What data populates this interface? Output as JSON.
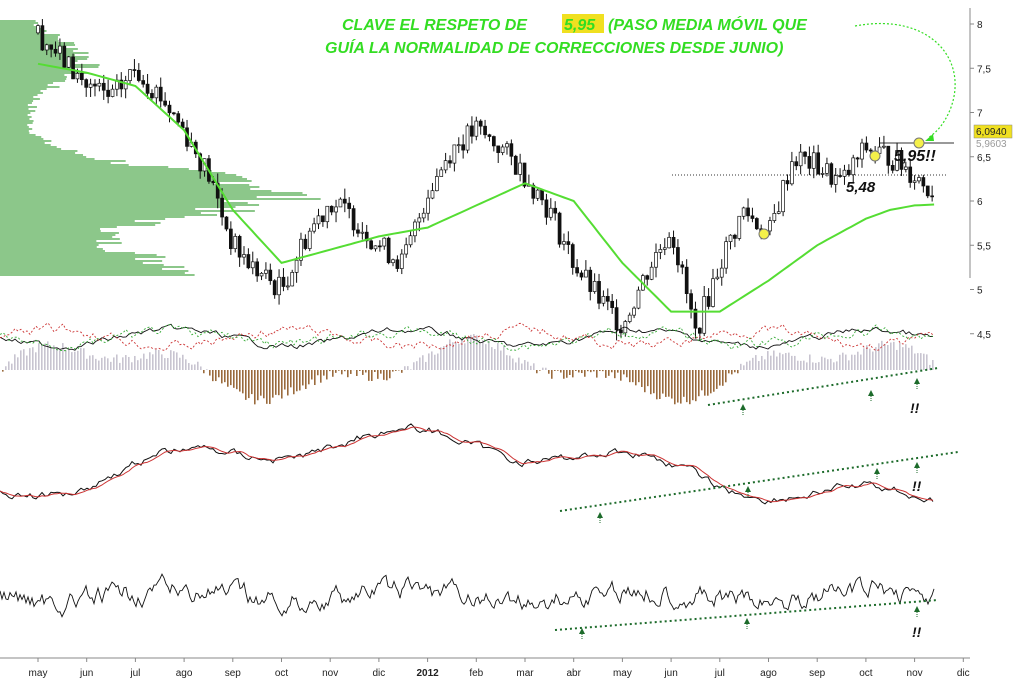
{
  "title_line1_prefix": "CLAVE EL RESPETO DE",
  "title_highlight": "5,95",
  "title_line1_suffix": "(PASO MEDIA MÓVIL QUE",
  "title_line2": "GUÍA LA NORMALIDAD DE CORRECCIONES DESDE JUNIO)",
  "annotations": {
    "support_label": "5,95!!",
    "level_label": "5,48",
    "signal_mark": "!!"
  },
  "price_badges": {
    "last": "6,0940",
    "ma": "5,9603"
  },
  "colors": {
    "title": "#33dd22",
    "moving_average": "#55dd33",
    "volume_profile": "#8cc78a",
    "histogram_negative": "#9a6a3c",
    "histogram_positive": "#c8c4d0",
    "signal_line": "#cc3333",
    "trendline": "#1d6b2b",
    "badge_bg": "#f0e020"
  },
  "chart_data": {
    "type": "line",
    "title": "CLAVE EL RESPETO DE 5,95 (PASO MEDIA MÓVIL QUE GUÍA LA NORMALIDAD DE CORRECCIONES DESDE JUNIO)",
    "x_labels": [
      "may",
      "jun",
      "jul",
      "ago",
      "sep",
      "oct",
      "nov",
      "dic",
      "2012",
      "feb",
      "mar",
      "abr",
      "may",
      "jun",
      "jul",
      "ago",
      "sep",
      "oct",
      "nov",
      "dic"
    ],
    "x_range": [
      0,
      19
    ],
    "y_ticks": [
      "8",
      "7,5",
      "7",
      "6,5",
      "6",
      "5,5",
      "5",
      "4,5"
    ],
    "ylim": [
      4.2,
      8.2
    ],
    "grid": false,
    "series": [
      {
        "role": "price-candles",
        "x": [
          0,
          0.5,
          1,
          1.5,
          2,
          2.5,
          3,
          3.5,
          4,
          4.5,
          5,
          5.5,
          6,
          6.5,
          7,
          7.5,
          8,
          8.5,
          9,
          9.5,
          10,
          10.5,
          11,
          11.5,
          12,
          12.5,
          13,
          13.5,
          14,
          14.5,
          15,
          15.5,
          16,
          16.5,
          17,
          17.5,
          18,
          18.4
        ],
        "values": [
          7.9,
          7.6,
          7.3,
          7.15,
          7.5,
          7.2,
          6.8,
          6.3,
          5.5,
          5.2,
          5.0,
          5.6,
          6.0,
          5.8,
          5.5,
          5.3,
          6.1,
          6.6,
          6.8,
          6.6,
          6.3,
          5.9,
          5.3,
          4.9,
          4.6,
          5.2,
          5.7,
          4.5,
          5.3,
          5.9,
          5.6,
          6.5,
          6.4,
          6.2,
          6.6,
          6.5,
          6.3,
          6.09
        ]
      },
      {
        "role": "moving-average",
        "x": [
          0,
          1,
          2,
          3,
          4,
          5,
          6,
          7,
          8,
          9,
          10,
          11,
          12,
          13,
          14,
          15,
          16,
          17,
          17.5,
          18,
          18.4
        ],
        "values": [
          7.55,
          7.45,
          7.3,
          6.8,
          5.9,
          5.3,
          5.45,
          5.6,
          5.7,
          5.95,
          6.2,
          6.0,
          5.3,
          4.75,
          4.75,
          5.1,
          5.5,
          5.8,
          5.9,
          5.95,
          5.96
        ]
      }
    ],
    "levels": [
      {
        "label": "5,48",
        "value": 5.48
      },
      {
        "label": "5,95!!",
        "value": 5.95
      }
    ],
    "last_price": 6.094,
    "last_moving_average": 5.9603,
    "indicator_panels": [
      "histogram-oscillator",
      "dual-line-oscillator",
      "single-line-oscillator"
    ]
  }
}
